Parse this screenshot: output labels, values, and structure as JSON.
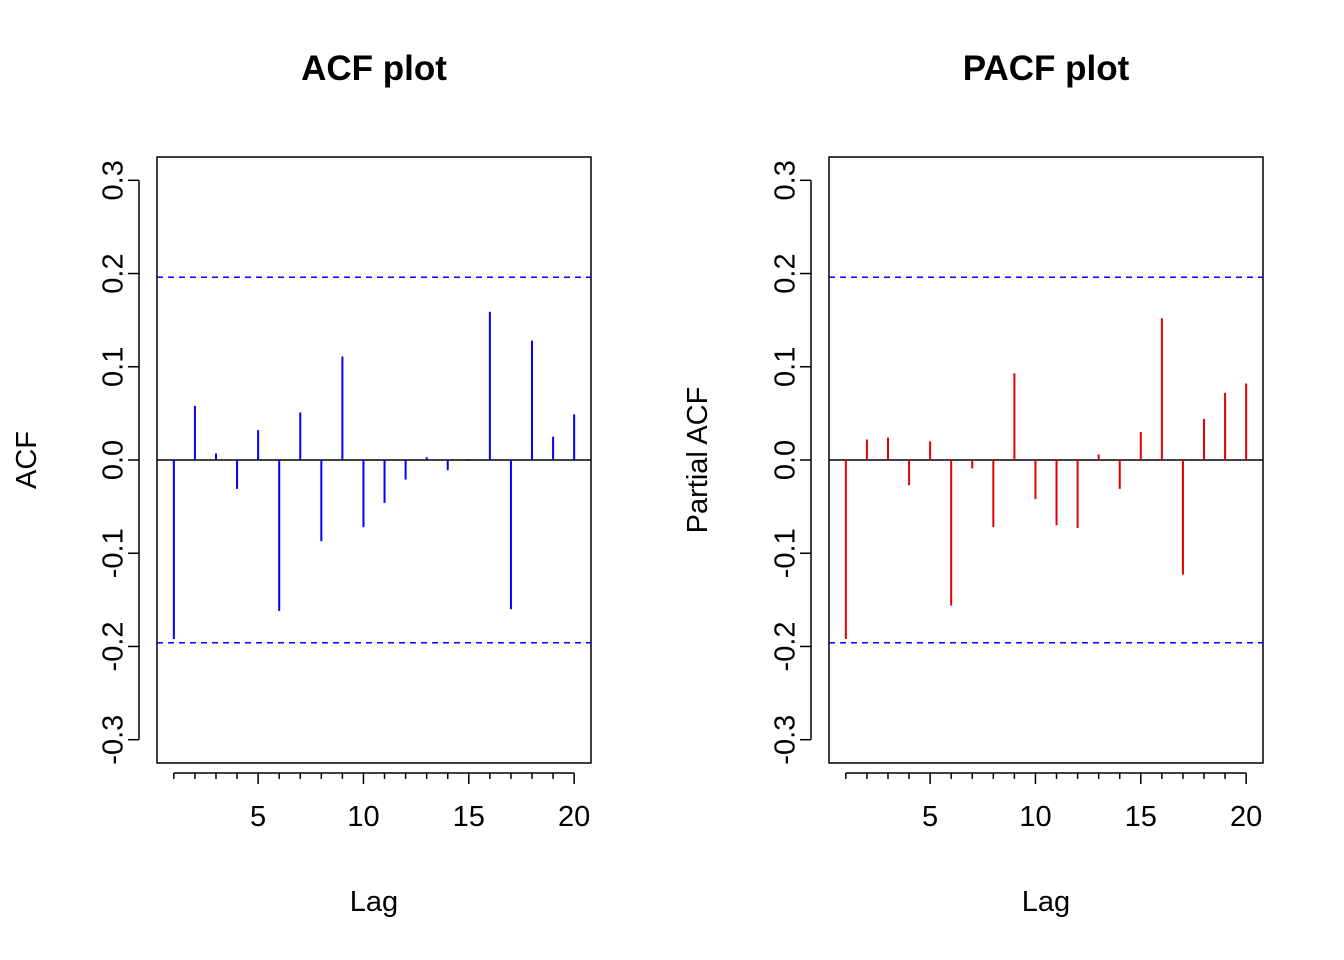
{
  "chart_data": [
    {
      "type": "bar",
      "title": "ACF plot",
      "xlabel": "Lag",
      "ylabel": "ACF",
      "xlim": [
        0.2,
        20.8
      ],
      "ylim": [
        -0.325,
        0.325
      ],
      "x_ticks": [
        5,
        10,
        15,
        20
      ],
      "x_minor_ticks": [
        1,
        2,
        3,
        4,
        5,
        6,
        7,
        8,
        9,
        10,
        11,
        12,
        13,
        14,
        15,
        16,
        17,
        18,
        19,
        20
      ],
      "y_ticks": [
        -0.3,
        -0.2,
        -0.1,
        0.0,
        0.1,
        0.2,
        0.3
      ],
      "y_tick_labels": [
        "-0.3",
        "-0.2",
        "-0.1",
        "0.0",
        "0.1",
        "0.2",
        "0.3"
      ],
      "x_tick_labels": [
        "5",
        "10",
        "15",
        "20"
      ],
      "bar_color": "#0000ff",
      "confidence_bound": 0.196,
      "confidence_color": "#0000ff",
      "lags": [
        1,
        2,
        3,
        4,
        5,
        6,
        7,
        8,
        9,
        10,
        11,
        12,
        13,
        14,
        15,
        16,
        17,
        18,
        19,
        20
      ],
      "values": [
        -0.192,
        0.058,
        0.007,
        -0.031,
        0.032,
        -0.162,
        0.051,
        -0.087,
        0.111,
        -0.072,
        -0.046,
        -0.021,
        0.003,
        -0.011,
        0.001,
        0.159,
        -0.16,
        0.128,
        0.025,
        0.049
      ]
    },
    {
      "type": "bar",
      "title": "PACF plot",
      "xlabel": "Lag",
      "ylabel": "Partial ACF",
      "xlim": [
        0.2,
        20.8
      ],
      "ylim": [
        -0.325,
        0.325
      ],
      "x_ticks": [
        5,
        10,
        15,
        20
      ],
      "x_minor_ticks": [
        1,
        2,
        3,
        4,
        5,
        6,
        7,
        8,
        9,
        10,
        11,
        12,
        13,
        14,
        15,
        16,
        17,
        18,
        19,
        20
      ],
      "y_ticks": [
        -0.3,
        -0.2,
        -0.1,
        0.0,
        0.1,
        0.2,
        0.3
      ],
      "y_tick_labels": [
        "-0.3",
        "-0.2",
        "-0.1",
        "0.0",
        "0.1",
        "0.2",
        "0.3"
      ],
      "x_tick_labels": [
        "5",
        "10",
        "15",
        "20"
      ],
      "bar_color": "#e00000",
      "confidence_bound": 0.196,
      "confidence_color": "#0000ff",
      "lags": [
        1,
        2,
        3,
        4,
        5,
        6,
        7,
        8,
        9,
        10,
        11,
        12,
        13,
        14,
        15,
        16,
        17,
        18,
        19,
        20
      ],
      "values": [
        -0.192,
        0.022,
        0.024,
        -0.027,
        0.02,
        -0.156,
        -0.009,
        -0.072,
        0.093,
        -0.042,
        -0.07,
        -0.073,
        0.006,
        -0.031,
        0.03,
        0.152,
        -0.123,
        0.044,
        0.072,
        0.082
      ]
    }
  ]
}
